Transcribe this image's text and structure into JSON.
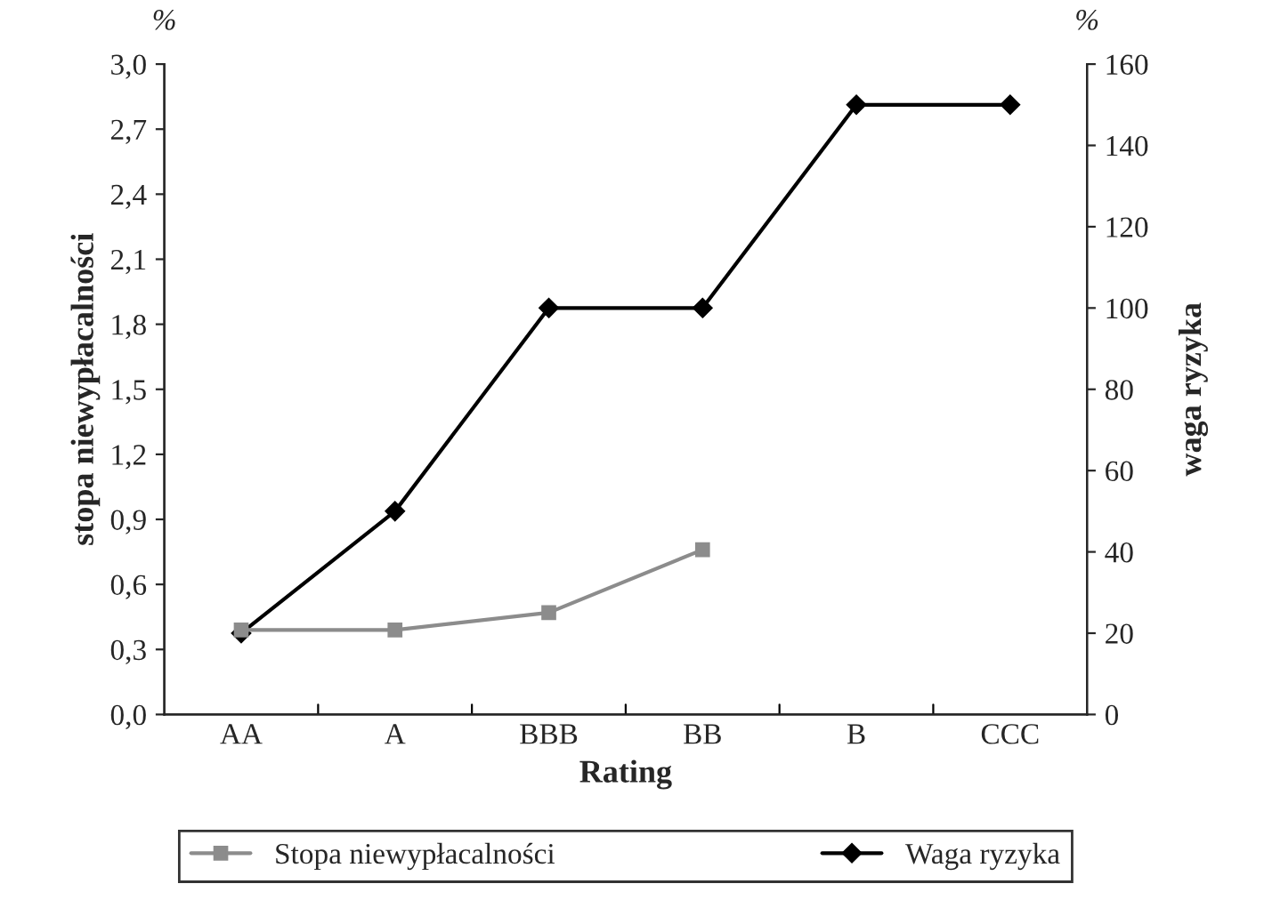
{
  "chart_data": {
    "type": "line",
    "xlabel": "Rating",
    "ylabel": "stopa niewypłacalności",
    "y2label": "waga ryzyka",
    "categories": [
      "AA",
      "A",
      "BBB",
      "BB",
      "B",
      "CCC"
    ],
    "series": [
      {
        "name": "Stopa niewypłacalności",
        "color": "#8c8c8c",
        "marker": "square",
        "values": [
          0.39,
          0.39,
          0.47,
          0.76,
          null,
          null
        ]
      },
      {
        "name": "Waga ryzyka",
        "color": "#000000",
        "marker": "diamond",
        "axis": "y2",
        "values": [
          20,
          50,
          100,
          100,
          150,
          150
        ]
      }
    ],
    "ylim": [
      0,
      3.0
    ],
    "yticks": [
      {
        "value": 0,
        "label": "0,0"
      },
      {
        "value": 0.3,
        "label": "0,3"
      },
      {
        "value": 0.6,
        "label": "0,6"
      },
      {
        "value": 0.9,
        "label": "0,9"
      },
      {
        "value": 1.2,
        "label": "1,2"
      },
      {
        "value": 1.5,
        "label": "1,5"
      },
      {
        "value": 1.8,
        "label": "1,8"
      },
      {
        "value": 2.1,
        "label": "2,1"
      },
      {
        "value": 2.4,
        "label": "2,4"
      },
      {
        "value": 2.7,
        "label": "2,7"
      },
      {
        "value": 3.0,
        "label": "3,0"
      }
    ],
    "y2lim": [
      0,
      160
    ],
    "y2ticks": [
      0,
      20,
      40,
      60,
      80,
      100,
      120,
      140,
      160
    ],
    "annotations": [
      "%",
      "%"
    ],
    "legend": "bottom",
    "grid": false
  }
}
